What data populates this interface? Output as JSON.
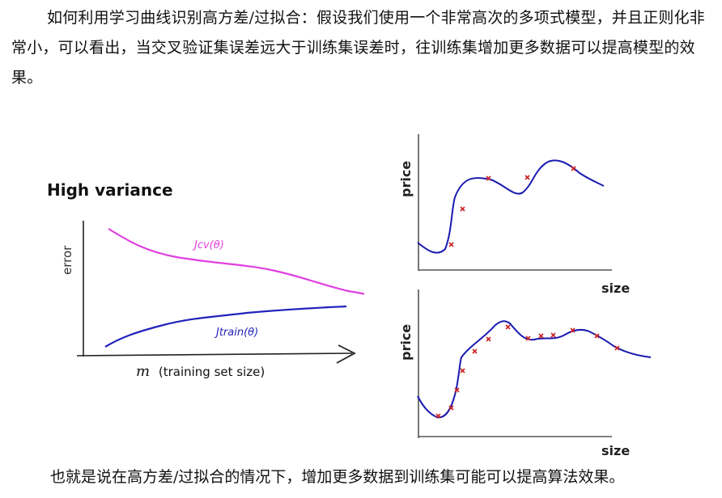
{
  "intro_text": "如何利用学习曲线识别高方差/过拟合：假设我们使用一个非常高次的多项式模型，并且正则化非常小，可以看出，当交叉验证集误差远大于训练集误差时，往训练集增加更多数据可以提高模型的效果。",
  "learning_curve": {
    "title": "High variance",
    "ylabel": "error",
    "xlabel_symbol": "m",
    "xlabel_text": "(training set size)",
    "cv_label": "Jcv(θ)",
    "train_label": "Jtrain(θ)",
    "colors": {
      "cv": "#e040e0",
      "train": "#2222bb",
      "axis": "#222222"
    }
  },
  "price_plot_top": {
    "ylabel": "price",
    "xlabel": "size",
    "colors": {
      "curve": "#1a1ab0",
      "points": "#cc2222"
    }
  },
  "price_plot_bottom": {
    "ylabel": "price",
    "xlabel": "size",
    "colors": {
      "curve": "#1a1ab0",
      "points": "#cc2222"
    }
  },
  "footer_text": "也就是说在高方差/过拟合的情况下，增加更多数据到训练集可能可以提高算法效果。"
}
